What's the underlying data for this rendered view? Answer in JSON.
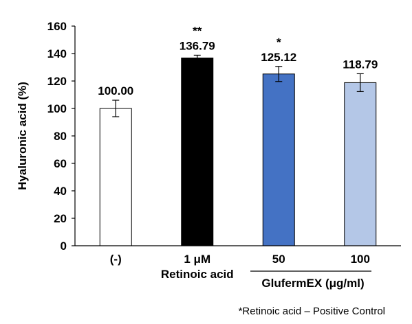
{
  "chart_data": {
    "type": "bar",
    "categories": [
      "(-)",
      "1 μM",
      "50",
      "100"
    ],
    "category_sublabels": [
      "",
      "Retinoic acid",
      "",
      ""
    ],
    "values": [
      100.0,
      136.79,
      125.12,
      118.79
    ],
    "value_labels": [
      "100.00",
      "136.79",
      "125.12",
      "118.79"
    ],
    "error": [
      6,
      2,
      5.5,
      6.5
    ],
    "significance": [
      "",
      "**",
      "*",
      ""
    ],
    "bar_colors": [
      "#ffffff",
      "#000000",
      "#4472c4",
      "#b4c7e7"
    ],
    "ylabel": "Hyaluronic acid (%)",
    "ylim": [
      0,
      160
    ],
    "yticks": [
      "0",
      "20",
      "40",
      "60",
      "80",
      "100",
      "120",
      "140",
      "160"
    ],
    "group_label": "GlufermEX (μg/ml)",
    "footnote": "*Retinoic acid – Positive Control",
    "grid": false
  }
}
